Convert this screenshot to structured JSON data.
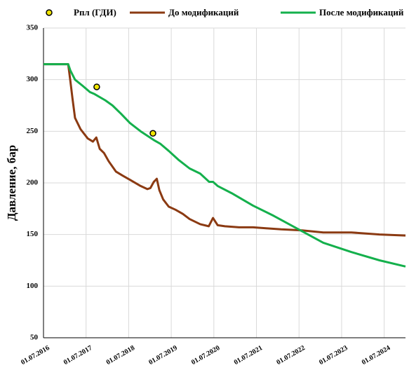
{
  "chart_data": {
    "type": "line",
    "ylabel": "Давление, бар",
    "ylim": [
      50,
      350
    ],
    "yticks": [
      50,
      100,
      150,
      200,
      250,
      300,
      350
    ],
    "xlim": [
      2016.5,
      2025.0
    ],
    "xticks": [
      {
        "value": 2016.5,
        "label": "01.07.2016"
      },
      {
        "value": 2017.5,
        "label": "01.07.2017"
      },
      {
        "value": 2018.5,
        "label": "01.07.2018"
      },
      {
        "value": 2019.5,
        "label": "01.07.2019"
      },
      {
        "value": 2020.5,
        "label": "01.07.2020"
      },
      {
        "value": 2021.5,
        "label": "01.07.2021"
      },
      {
        "value": 2022.5,
        "label": "01.07.2022"
      },
      {
        "value": 2023.5,
        "label": "01.07.2023"
      },
      {
        "value": 2024.5,
        "label": "01.07.2024"
      }
    ],
    "grid": true,
    "legend": "top",
    "series": [
      {
        "name": "Рпл (ГДИ)",
        "type": "scatter",
        "color": "#f2e600",
        "x": [
          2017.75,
          2019.07
        ],
        "values": [
          293,
          248
        ]
      },
      {
        "name": "До модификаций",
        "type": "line",
        "color": "#8b3a12",
        "x": [
          2016.5,
          2017.08,
          2017.13,
          2017.18,
          2017.24,
          2017.37,
          2017.54,
          2017.66,
          2017.74,
          2017.82,
          2017.92,
          2018.03,
          2018.2,
          2018.36,
          2018.53,
          2018.78,
          2018.94,
          2019.01,
          2019.09,
          2019.16,
          2019.22,
          2019.31,
          2019.44,
          2019.6,
          2019.77,
          2019.93,
          2020.18,
          2020.38,
          2020.48,
          2020.59,
          2020.76,
          2021.09,
          2021.42,
          2021.75,
          2022.08,
          2022.57,
          2023.07,
          2023.73,
          2024.39,
          2025.0
        ],
        "values": [
          315,
          315,
          299,
          282,
          263,
          252,
          243,
          240,
          244,
          233,
          229,
          221,
          211,
          207,
          203,
          197,
          194,
          195,
          201,
          204,
          193,
          184,
          177,
          174,
          170,
          165,
          160,
          158,
          166,
          159,
          158,
          157,
          157,
          156,
          155,
          154,
          152,
          152,
          150,
          149
        ]
      },
      {
        "name": "После модификаций",
        "type": "line",
        "color": "#14b04c",
        "x": [
          2016.5,
          2017.08,
          2017.13,
          2017.24,
          2017.42,
          2017.59,
          2017.7,
          2017.95,
          2018.12,
          2018.32,
          2018.53,
          2018.78,
          2019.11,
          2019.24,
          2019.44,
          2019.68,
          2019.93,
          2020.18,
          2020.39,
          2020.48,
          2020.59,
          2020.92,
          2021.42,
          2021.91,
          2022.49,
          2023.07,
          2023.73,
          2024.39,
          2025.0
        ],
        "values": [
          315,
          315,
          309,
          300,
          294,
          288,
          286,
          280,
          275,
          267,
          258,
          250,
          241,
          238,
          231,
          222,
          214,
          209,
          201,
          201,
          197,
          190,
          178,
          168,
          155,
          142,
          133,
          125,
          119
        ]
      }
    ]
  }
}
